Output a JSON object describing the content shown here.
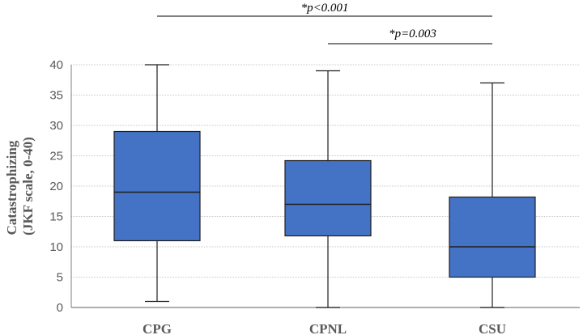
{
  "chart_data": {
    "type": "boxplot",
    "categories": [
      "CPG",
      "CPNL",
      "CSU"
    ],
    "ylabel_lines": [
      "Catastrophizing",
      "(JKF scale, 0-40)"
    ],
    "ylim": [
      0,
      40
    ],
    "yticks": [
      0,
      5,
      10,
      15,
      20,
      25,
      30,
      35,
      40
    ],
    "grid": true,
    "boxes": [
      {
        "category": "CPG",
        "min": 1,
        "q1": 11,
        "median": 19,
        "q3": 29,
        "max": 40
      },
      {
        "category": "CPNL",
        "min": 0,
        "q1": 11.8,
        "median": 17,
        "q3": 24.2,
        "max": 39
      },
      {
        "category": "CSU",
        "min": 0,
        "q1": 5,
        "median": 10,
        "q3": 18.2,
        "max": 37
      }
    ],
    "annotations": [
      {
        "text": "*p<0.001",
        "from": "CPG",
        "to": "CSU"
      },
      {
        "text": "*p=0.003",
        "from": "CPNL",
        "to": "CSU"
      }
    ],
    "colors": {
      "box_fill": "#4472c4",
      "box_stroke": "#1f1f1f",
      "grid": "#c8c8c8",
      "axis": "#7f7f7f"
    }
  }
}
